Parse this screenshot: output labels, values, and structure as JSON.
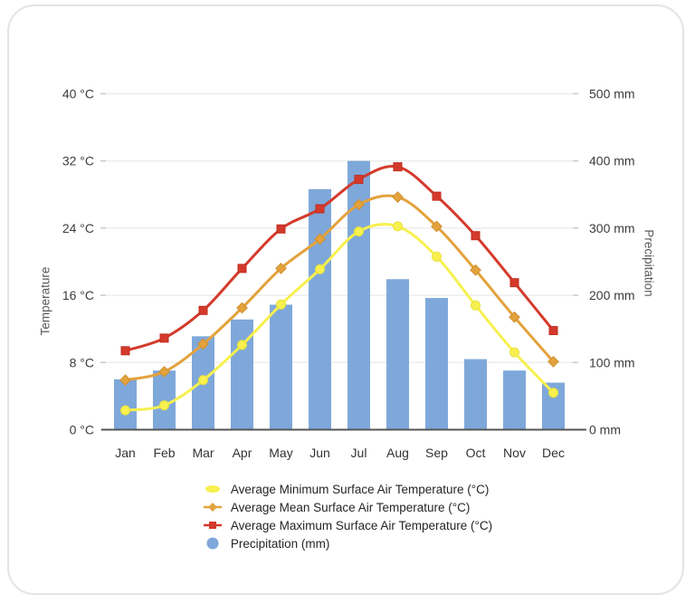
{
  "chart_data": {
    "type": "bar",
    "subtype": "composite-climate-chart",
    "title": "",
    "categories": [
      "Jan",
      "Feb",
      "Mar",
      "Apr",
      "May",
      "Jun",
      "Jul",
      "Aug",
      "Sep",
      "Oct",
      "Nov",
      "Dec"
    ],
    "series": [
      {
        "name": "Average Minimum Surface Air Temperature (°C)",
        "type": "line",
        "axis": "temperature",
        "marker": "circle",
        "color": "#f7f04e",
        "marker_stroke": "#e9e13a",
        "values": [
          2.3,
          2.9,
          5.9,
          10.1,
          14.9,
          19.1,
          23.6,
          24.2,
          20.6,
          14.8,
          9.2,
          4.4
        ]
      },
      {
        "name": "Average Mean Surface Air Temperature (°C)",
        "type": "line",
        "axis": "temperature",
        "marker": "diamond",
        "color": "#e3a23c",
        "marker_stroke": "#cf8f2e",
        "values": [
          5.9,
          6.9,
          10.2,
          14.5,
          19.2,
          22.7,
          26.8,
          27.7,
          24.2,
          19.0,
          13.4,
          8.1
        ]
      },
      {
        "name": "Average Maximum Surface Air Temperature (°C)",
        "type": "line",
        "axis": "temperature",
        "marker": "square",
        "color": "#d43a2b",
        "marker_stroke": "#bf2d1f",
        "values": [
          9.4,
          10.9,
          14.2,
          19.2,
          23.9,
          26.3,
          29.8,
          31.3,
          27.8,
          23.1,
          17.5,
          11.8
        ]
      },
      {
        "name": "Precipitation (mm)",
        "type": "bar",
        "axis": "precipitation",
        "marker": "circle-large",
        "color": "#7fa8da",
        "values": [
          75,
          88,
          139,
          164,
          186,
          358,
          400,
          224,
          196,
          105,
          88,
          70
        ]
      }
    ],
    "left_axis": {
      "label": "Temperature",
      "unit": "°C",
      "min": 0,
      "max": 40,
      "step": 8,
      "tick_labels": [
        "0 °C",
        "8 °C",
        "16 °C",
        "24 °C",
        "32 °C",
        "40 °C"
      ]
    },
    "right_axis": {
      "label": "Precipitation",
      "unit": "mm",
      "min": 0,
      "max": 500,
      "step": 100,
      "tick_labels": [
        "0 mm",
        "100 mm",
        "200 mm",
        "300 mm",
        "400 mm",
        "500 mm"
      ]
    },
    "grid": "horizontal-only",
    "legend_position": "bottom",
    "colors": {
      "grid_line": "#ededed",
      "axis_line": "#555555",
      "tick": "#c9c9c9",
      "tick_label": "#3c3c3c",
      "month_label": "#333333",
      "axis_title": "#5a5a5a",
      "card_border": "#e4e4e4",
      "background": "#ffffff"
    }
  }
}
